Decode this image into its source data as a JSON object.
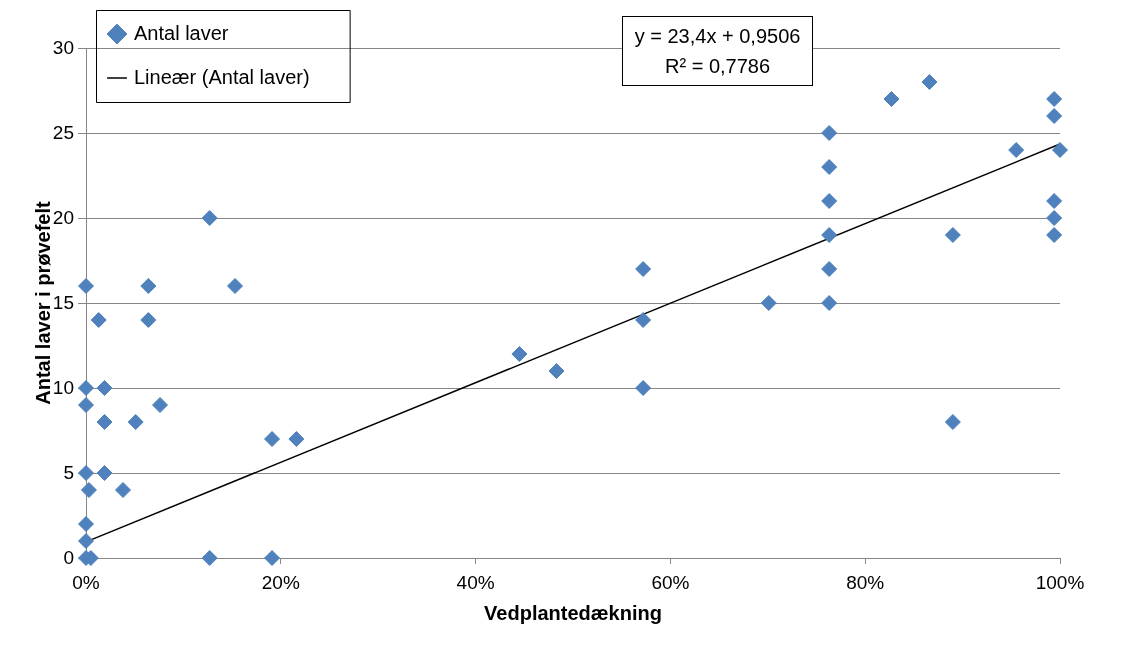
{
  "chart_data": {
    "type": "scatter",
    "xlabel": "Vedplantedækning",
    "ylabel": "Antal laver i prøvefelt",
    "xlim": [
      0,
      100
    ],
    "xticks": [
      {
        "value": 0,
        "label": "0%"
      },
      {
        "value": 20,
        "label": "20%"
      },
      {
        "value": 40,
        "label": "40%"
      },
      {
        "value": 60,
        "label": "60%"
      },
      {
        "value": 80,
        "label": "80%"
      },
      {
        "value": 100,
        "label": "100%"
      }
    ],
    "ylim": [
      0,
      30
    ],
    "yticks": [
      0,
      5,
      10,
      15,
      20,
      25,
      30
    ],
    "grid": "y",
    "legend": "top left",
    "marker": "diamond",
    "annotations": [
      "y = 23,4x + 0,9506",
      "R² = 0,7786"
    ],
    "series": [
      {
        "name": "Antal laver",
        "type": "scatter",
        "color": "#4f81bd",
        "x": [
          0,
          0,
          0,
          0,
          0.3,
          0,
          0,
          0,
          0.5,
          1.3,
          1.9,
          1.9,
          1.9,
          3.8,
          5.1,
          6.4,
          6.4,
          7.6,
          12.7,
          12.7,
          15.3,
          19.1,
          19.1,
          21.6,
          44.5,
          48.3,
          57.2,
          57.2,
          57.2,
          70.1,
          76.3,
          76.3,
          76.3,
          76.3,
          76.3,
          76.3,
          82.7,
          86.6,
          89,
          89,
          95.5,
          99.4,
          99.4,
          99.4,
          99.4,
          99.4,
          100
        ],
        "values": [
          16,
          10,
          9,
          5,
          4,
          2,
          1,
          0,
          0,
          14,
          10,
          8,
          5,
          4,
          8,
          16,
          14,
          9,
          20,
          0,
          16,
          7,
          0,
          7,
          12,
          11,
          17,
          14,
          10,
          15,
          25,
          23,
          21,
          19,
          17,
          15,
          27,
          28,
          19,
          8,
          24,
          27,
          26,
          21,
          20,
          19,
          24
        ]
      },
      {
        "name": "Lineær (Antal laver)",
        "type": "line",
        "color": "#000000",
        "x": [
          0,
          100
        ],
        "values": [
          0.95,
          24.35
        ],
        "marker": "none",
        "line_style": "solid"
      }
    ]
  }
}
